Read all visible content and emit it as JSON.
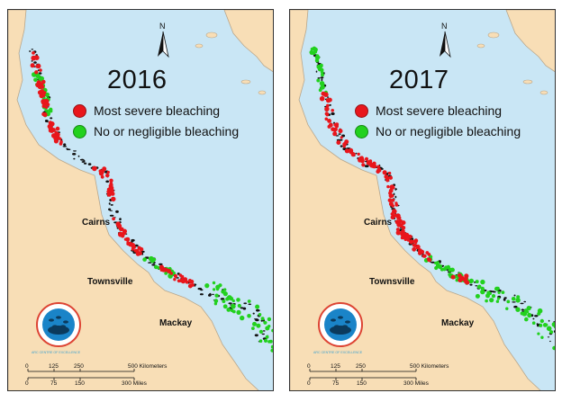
{
  "panels": [
    {
      "id": "2016",
      "year": "2016",
      "severe_segments": [
        [
          0.02,
          0.25
        ],
        [
          0.35,
          0.45
        ],
        [
          0.48,
          0.6
        ],
        [
          0.66,
          0.76
        ]
      ],
      "green_segments": [
        [
          0.06,
          0.18
        ],
        [
          0.62,
          0.7
        ],
        [
          0.78,
          1.0
        ]
      ]
    },
    {
      "id": "2017",
      "year": "2017",
      "severe_segments": [
        [
          0.12,
          0.62
        ],
        [
          0.7,
          0.74
        ]
      ],
      "green_segments": [
        [
          0.0,
          0.12
        ],
        [
          0.62,
          1.0
        ]
      ]
    }
  ],
  "legend": {
    "severe": "Most severe bleaching",
    "none": "No or negligible bleaching"
  },
  "colors": {
    "severe": "#e8161c",
    "none": "#22d11e",
    "sea": "#c9e6f5",
    "land": "#f8deb6",
    "reef": "#111111"
  },
  "cities": {
    "cairns": "Cairns",
    "townsville": "Townsville",
    "mackay": "Mackay"
  },
  "north_label": "N",
  "logo_text": "ARC CENTRE OF EXCELLENCE",
  "scale": {
    "km_ticks": [
      "0",
      "125",
      "250",
      "500 Kilometers"
    ],
    "mile_ticks": [
      "0",
      "75",
      "150",
      "300 Miles"
    ]
  }
}
